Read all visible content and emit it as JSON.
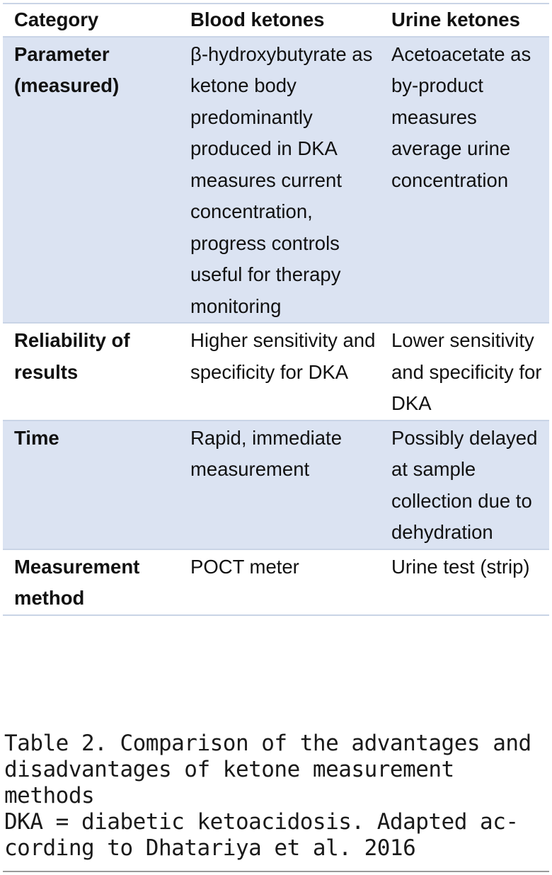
{
  "table": {
    "headers": {
      "category": "Category",
      "blood": "Blood ketones",
      "urine": "Urine ketones"
    },
    "rows": [
      {
        "category": "Parameter (measured)",
        "blood": "β-hydroxybutyrate as ketone body predominantly produced in DKA measures current concentration, progress controls useful for therapy monitoring",
        "urine": "Acetoacetate as by-product measures average urine concentration"
      },
      {
        "category": "Reliability of results",
        "blood": "Higher sensitivity and specificity for DKA",
        "urine": "Lower sensitivity and specificity for DKA"
      },
      {
        "category": "Time",
        "blood": "Rapid, immediate measurement",
        "urine": "Possibly delayed at sample collection due to dehydration"
      },
      {
        "category": "Measurement method",
        "blood": "POCT meter",
        "urine": "Urine test (strip)"
      }
    ]
  },
  "caption": {
    "title": "Table 2. Comparison of the advantages and disadvantages of ketone measurement methods",
    "note": "DKA = diabetic ketoacidosis. Adapted ac-cording to Dhatariya et al. 2016"
  },
  "colors": {
    "row_shade": "#dbe3f2",
    "rule": "#c9d4e6"
  }
}
